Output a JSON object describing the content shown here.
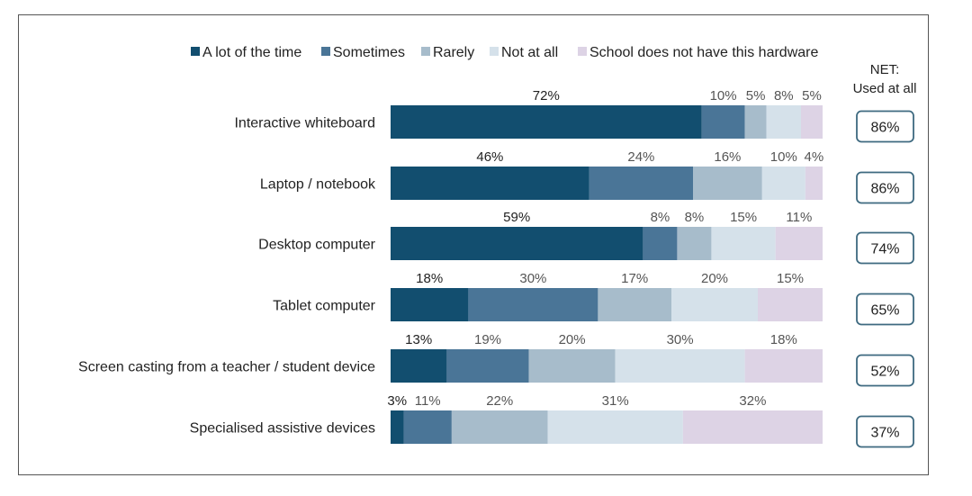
{
  "chart_data": {
    "type": "bar",
    "orientation": "horizontal",
    "stacked": true,
    "categories": [
      "Interactive whiteboard",
      "Laptop / notebook",
      "Desktop computer",
      "Tablet computer",
      "Screen casting from a teacher / student device",
      "Specialised assistive devices"
    ],
    "series": [
      {
        "name": "A lot of the time",
        "color": "#124e6f",
        "values": [
          72,
          46,
          59,
          18,
          13,
          3
        ]
      },
      {
        "name": "Sometimes",
        "color": "#4a7597",
        "values": [
          10,
          24,
          8,
          30,
          19,
          11
        ]
      },
      {
        "name": "Rarely",
        "color": "#a7bccb",
        "values": [
          5,
          16,
          8,
          17,
          20,
          22
        ]
      },
      {
        "name": "Not at  all",
        "color": "#d5e1ea",
        "values": [
          8,
          10,
          15,
          20,
          30,
          31
        ]
      },
      {
        "name": "School does not have this hardware",
        "color": "#ddd3e5",
        "values": [
          5,
          4,
          11,
          15,
          18,
          32
        ]
      }
    ],
    "legend_position": "top",
    "grid": false,
    "net": {
      "label_line1": "NET:",
      "label_line2": "Used at all",
      "values": [
        "86%",
        "86%",
        "74%",
        "65%",
        "52%",
        "37%"
      ]
    }
  }
}
